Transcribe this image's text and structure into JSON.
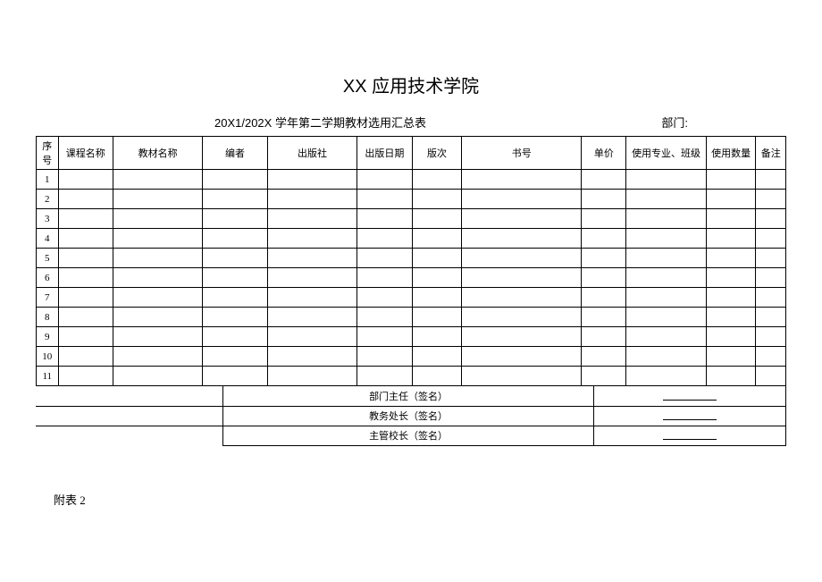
{
  "title": "XX 应用技术学院",
  "subtitle": "20X1/202X 学年第二学期教材选用汇总表",
  "dept_label": "部门:",
  "columns": {
    "seq": "序号",
    "course": "课程名称",
    "textbook": "教材名称",
    "author": "编者",
    "publisher": "出版社",
    "pubdate": "出版日期",
    "edition": "版次",
    "isbn": "书号",
    "price": "单价",
    "major": "使用专业、班级",
    "qty": "使用数量",
    "remark": "备注"
  },
  "rows": [
    {
      "seq": "1"
    },
    {
      "seq": "2"
    },
    {
      "seq": "3"
    },
    {
      "seq": "4"
    },
    {
      "seq": "5"
    },
    {
      "seq": "6"
    },
    {
      "seq": "7"
    },
    {
      "seq": "8"
    },
    {
      "seq": "9"
    },
    {
      "seq": "10"
    },
    {
      "seq": "11"
    }
  ],
  "signatures": {
    "dept_head": "部门主任（签名）",
    "academic_dean": "教务处长（签名）",
    "vice_president": "主管校长（签名）"
  },
  "appendix": "附表 2",
  "style": {
    "border_color": "#000000",
    "bg_color": "#ffffff",
    "text_color": "#000000",
    "title_fontsize": 20,
    "subtitle_fontsize": 13,
    "cell_fontsize": 11,
    "header_row_height": 28,
    "body_row_height": 22
  }
}
